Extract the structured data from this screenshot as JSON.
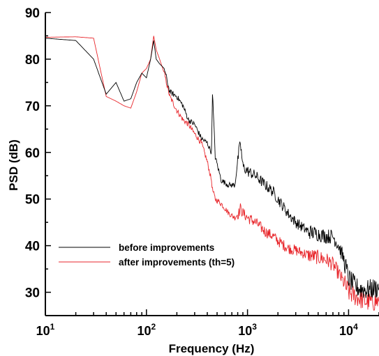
{
  "chart_data": {
    "type": "line",
    "xlabel": "Frequency (Hz)",
    "ylabel": "PSD (dB)",
    "x_scale": "log",
    "xlim": [
      10,
      20000
    ],
    "ylim": [
      25,
      90
    ],
    "x_ticks": [
      {
        "value": 10,
        "base": "10",
        "exp": "1"
      },
      {
        "value": 100,
        "base": "10",
        "exp": "2"
      },
      {
        "value": 1000,
        "base": "10",
        "exp": "3"
      },
      {
        "value": 10000,
        "base": "10",
        "exp": "4"
      }
    ],
    "y_ticks": [
      30,
      40,
      50,
      60,
      70,
      80,
      90
    ],
    "grid": false,
    "legend_position": "lower-left",
    "series": [
      {
        "name": "before improvements",
        "color": "#000000",
        "x": [
          10,
          20,
          30,
          40,
          50,
          60,
          70,
          80,
          90,
          100,
          110,
          118,
          125,
          135,
          150,
          170,
          200,
          230,
          260,
          300,
          350,
          400,
          440,
          450,
          480,
          550,
          650,
          750,
          820,
          850,
          900,
          1000,
          1200,
          1500,
          1800,
          2000,
          2500,
          3000,
          4000,
          5000,
          6000,
          7000,
          8000,
          9000,
          10000,
          12000,
          15000,
          20000
        ],
        "y": [
          84.5,
          84,
          80,
          72.5,
          75,
          71,
          71.5,
          75,
          77,
          76,
          80,
          84,
          80,
          79,
          78,
          73,
          72,
          70,
          67,
          66,
          63,
          62,
          60,
          73,
          59,
          54,
          53,
          53,
          60,
          62,
          57,
          56,
          55,
          53,
          51.5,
          50,
          47,
          45,
          43,
          42.5,
          42,
          42,
          40,
          37,
          33,
          31,
          30.5,
          31
        ]
      },
      {
        "name": "after improvements (th=5)",
        "color": "#e8262b",
        "x": [
          10,
          20,
          30,
          40,
          50,
          60,
          70,
          80,
          90,
          100,
          110,
          118,
          125,
          135,
          150,
          170,
          200,
          230,
          260,
          300,
          350,
          400,
          440,
          450,
          480,
          550,
          650,
          750,
          820,
          850,
          900,
          1000,
          1200,
          1500,
          1800,
          2000,
          2500,
          3000,
          4000,
          5000,
          6000,
          7000,
          8000,
          9000,
          10000,
          12000,
          15000,
          20000
        ],
        "y": [
          84.7,
          84.8,
          84.5,
          72,
          71,
          70,
          69.5,
          73,
          77,
          78,
          80,
          85,
          82,
          80,
          77,
          72,
          69,
          67,
          66,
          64,
          62,
          58,
          54,
          52,
          50,
          49,
          47,
          46,
          47,
          48,
          47,
          46,
          45,
          43,
          42,
          41,
          39.5,
          39,
          38,
          37.5,
          37,
          36,
          34,
          32,
          30,
          29,
          28,
          28
        ]
      }
    ]
  }
}
